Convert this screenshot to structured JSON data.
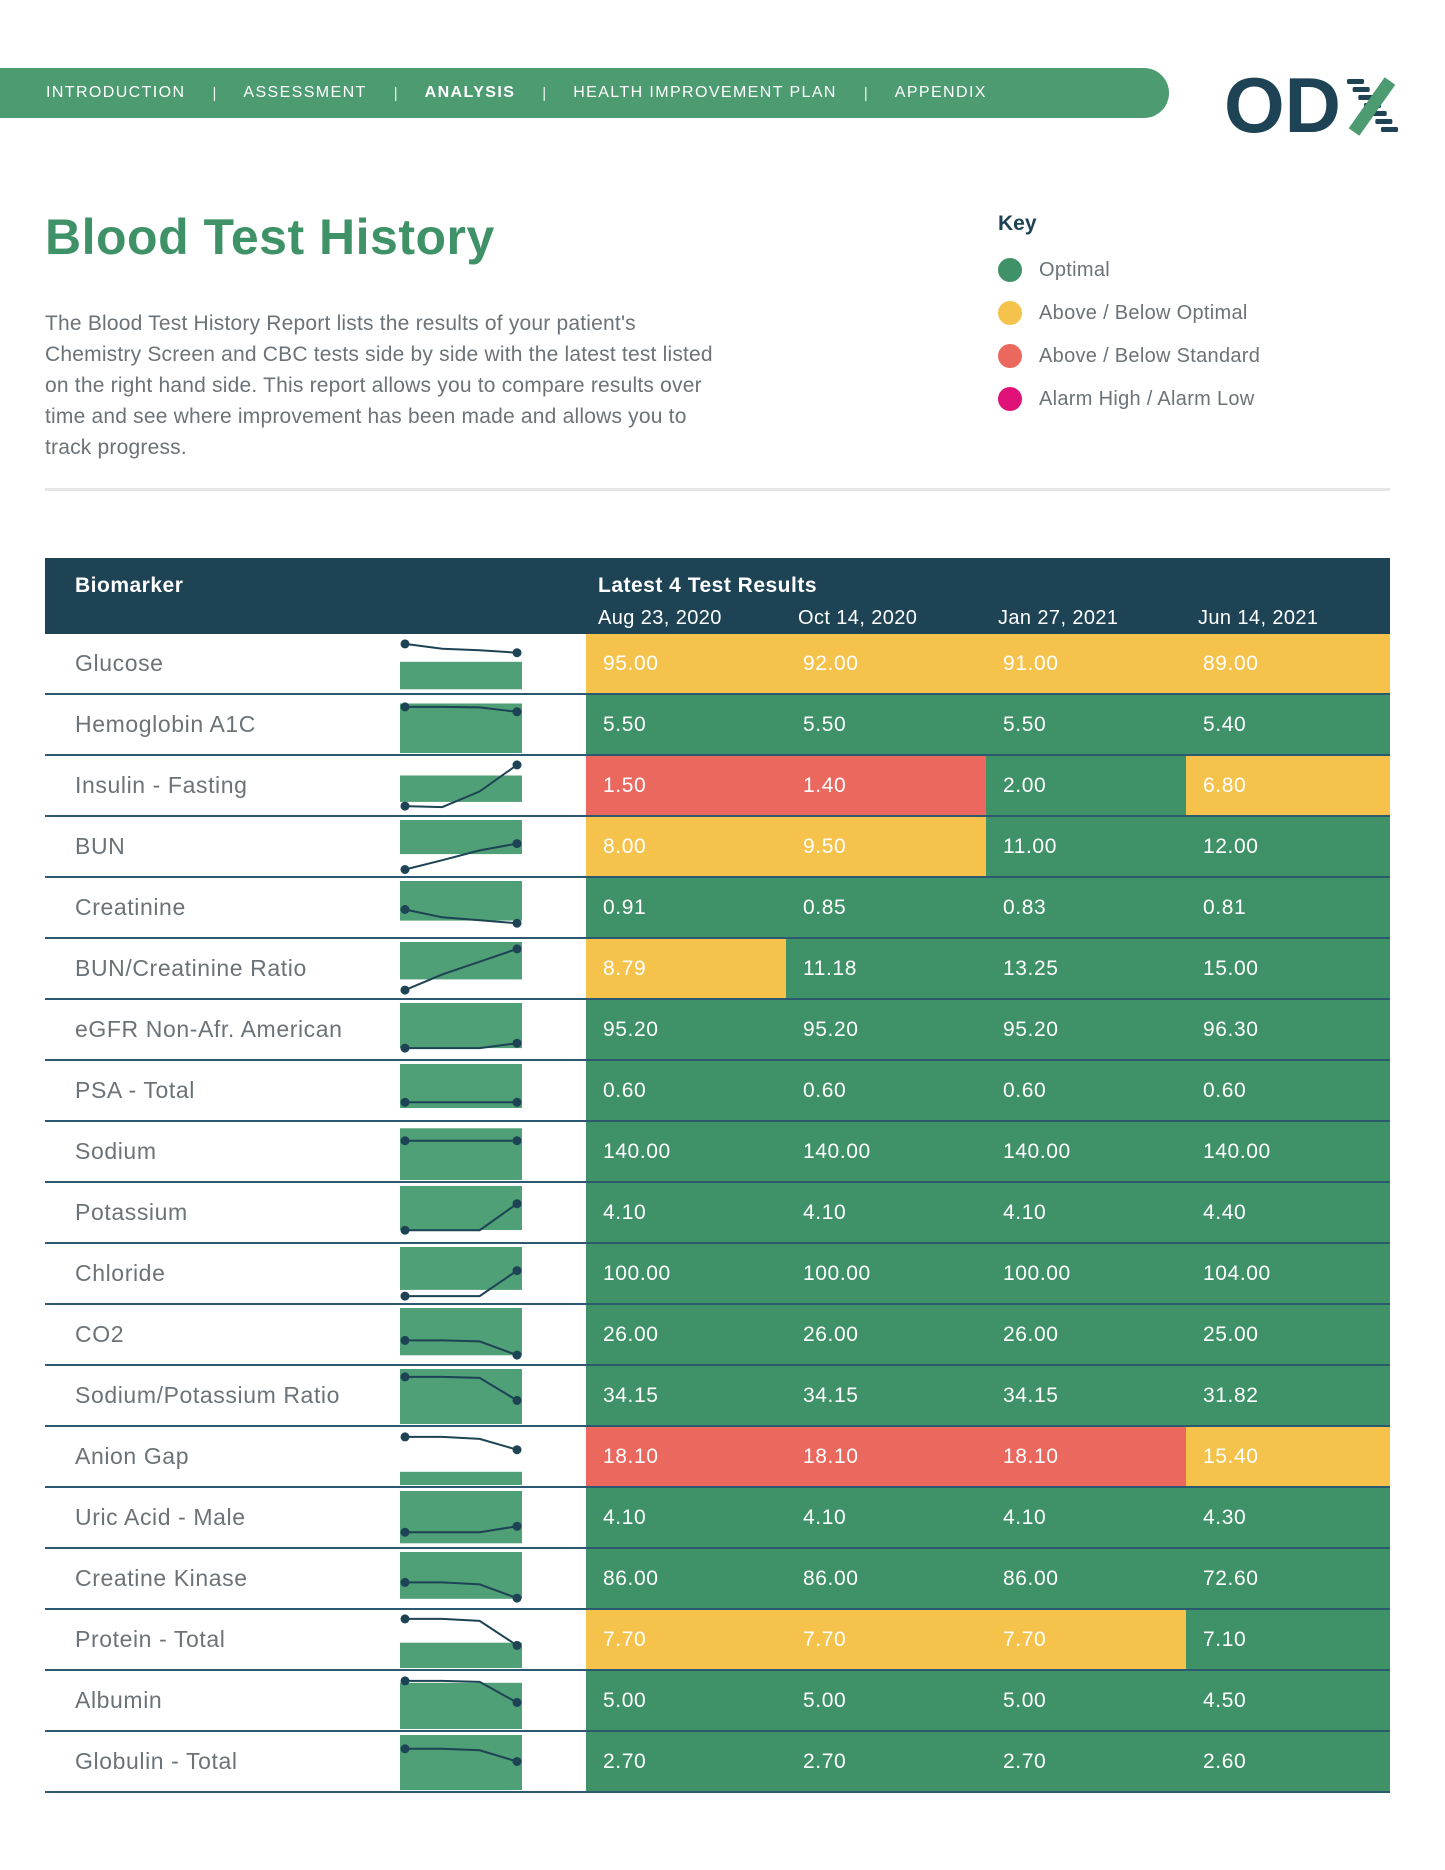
{
  "nav": {
    "separator": "|",
    "items": [
      {
        "label": "INTRODUCTION",
        "active": false
      },
      {
        "label": "ASSESSMENT",
        "active": false
      },
      {
        "label": "ANALYSIS",
        "active": true
      },
      {
        "label": "HEALTH IMPROVEMENT PLAN",
        "active": false
      },
      {
        "label": "APPENDIX",
        "active": false
      }
    ]
  },
  "logo": {
    "od": "OD",
    "x": "X"
  },
  "page": {
    "title": "Blood Test History",
    "description": "The Blood Test History Report lists the results of your patient's Chemistry Screen and CBC tests side by side with the latest test listed on the right hand side. This report allows you to compare results over time and see where improvement has been made and allows you to track progress."
  },
  "key": {
    "title": "Key",
    "items": [
      {
        "label": "Optimal",
        "status": "optimal"
      },
      {
        "label": "Above / Below Optimal",
        "status": "above_below_optimal"
      },
      {
        "label": "Above / Below Standard",
        "status": "above_below_standard"
      },
      {
        "label": "Alarm High / Alarm Low",
        "status": "alarm"
      }
    ]
  },
  "table": {
    "col_biomarker": "Biomarker",
    "col_results": "Latest 4 Test Results",
    "dates": [
      "Aug 23, 2020",
      "Oct 14, 2020",
      "Jan 27, 2021",
      "Jun 14, 2021"
    ],
    "rows": [
      {
        "biomarker": "Glucose",
        "values": [
          "95.00",
          "92.00",
          "91.00",
          "89.00"
        ],
        "statuses": [
          "above_below_optimal",
          "above_below_optimal",
          "above_below_optimal",
          "above_below_optimal"
        ],
        "spark": {
          "band": [
            0.45,
            0.95
          ],
          "points": [
            0.08,
            0.18,
            0.21,
            0.26
          ]
        }
      },
      {
        "biomarker": "Hemoglobin A1C",
        "values": [
          "5.50",
          "5.50",
          "5.50",
          "5.40"
        ],
        "statuses": [
          "optimal",
          "optimal",
          "optimal",
          "optimal"
        ],
        "spark": {
          "band": [
            0.1,
            1.0
          ],
          "points": [
            0.12,
            0.12,
            0.13,
            0.22
          ]
        }
      },
      {
        "biomarker": "Insulin - Fasting",
        "values": [
          "1.50",
          "1.40",
          "2.00",
          "6.80"
        ],
        "statuses": [
          "above_below_standard",
          "above_below_standard",
          "optimal",
          "above_below_optimal"
        ],
        "spark": {
          "band": [
            0.3,
            0.78
          ],
          "points": [
            0.9,
            0.92,
            0.6,
            0.06
          ]
        }
      },
      {
        "biomarker": "BUN",
        "values": [
          "8.00",
          "9.50",
          "11.00",
          "12.00"
        ],
        "statuses": [
          "above_below_optimal",
          "above_below_optimal",
          "optimal",
          "optimal"
        ],
        "spark": {
          "band": [
            0.0,
            0.62
          ],
          "points": [
            0.95,
            0.76,
            0.56,
            0.42
          ]
        }
      },
      {
        "biomarker": "Creatinine",
        "values": [
          "0.91",
          "0.85",
          "0.83",
          "0.81"
        ],
        "statuses": [
          "optimal",
          "optimal",
          "optimal",
          "optimal"
        ],
        "spark": {
          "band": [
            0.0,
            0.72
          ],
          "points": [
            0.52,
            0.68,
            0.74,
            0.8
          ]
        }
      },
      {
        "biomarker": "BUN/Creatinine Ratio",
        "values": [
          "8.79",
          "11.18",
          "13.25",
          "15.00"
        ],
        "statuses": [
          "above_below_optimal",
          "optimal",
          "optimal",
          "optimal"
        ],
        "spark": {
          "band": [
            0.0,
            0.68
          ],
          "points": [
            0.92,
            0.6,
            0.34,
            0.08
          ]
        }
      },
      {
        "biomarker": "eGFR Non-Afr. American",
        "values": [
          "95.20",
          "95.20",
          "95.20",
          "96.30"
        ],
        "statuses": [
          "optimal",
          "optimal",
          "optimal",
          "optimal"
        ],
        "spark": {
          "band": [
            0.0,
            0.82
          ],
          "points": [
            0.86,
            0.86,
            0.86,
            0.76
          ]
        }
      },
      {
        "biomarker": "PSA - Total",
        "values": [
          "0.60",
          "0.60",
          "0.60",
          "0.60"
        ],
        "statuses": [
          "optimal",
          "optimal",
          "optimal",
          "optimal"
        ],
        "spark": {
          "band": [
            0.0,
            0.8
          ],
          "points": [
            0.72,
            0.72,
            0.72,
            0.72
          ]
        }
      },
      {
        "biomarker": "Sodium",
        "values": [
          "140.00",
          "140.00",
          "140.00",
          "140.00"
        ],
        "statuses": [
          "optimal",
          "optimal",
          "optimal",
          "optimal"
        ],
        "spark": {
          "band": [
            0.06,
            1.0
          ],
          "points": [
            0.26,
            0.26,
            0.26,
            0.26
          ]
        }
      },
      {
        "biomarker": "Potassium",
        "values": [
          "4.10",
          "4.10",
          "4.10",
          "4.40"
        ],
        "statuses": [
          "optimal",
          "optimal",
          "optimal",
          "optimal"
        ],
        "spark": {
          "band": [
            0.0,
            0.8
          ],
          "points": [
            0.84,
            0.84,
            0.84,
            0.3
          ]
        }
      },
      {
        "biomarker": "Chloride",
        "values": [
          "100.00",
          "100.00",
          "100.00",
          "104.00"
        ],
        "statuses": [
          "optimal",
          "optimal",
          "optimal",
          "optimal"
        ],
        "spark": {
          "band": [
            0.0,
            0.78
          ],
          "points": [
            0.94,
            0.94,
            0.94,
            0.42
          ]
        }
      },
      {
        "biomarker": "CO2",
        "values": [
          "26.00",
          "26.00",
          "26.00",
          "25.00"
        ],
        "statuses": [
          "optimal",
          "optimal",
          "optimal",
          "optimal"
        ],
        "spark": {
          "band": [
            0.0,
            0.86
          ],
          "points": [
            0.6,
            0.6,
            0.62,
            0.9
          ]
        }
      },
      {
        "biomarker": "Sodium/Potassium Ratio",
        "values": [
          "34.15",
          "34.15",
          "34.15",
          "31.82"
        ],
        "statuses": [
          "optimal",
          "optimal",
          "optimal",
          "optimal"
        ],
        "spark": {
          "band": [
            0.0,
            1.0
          ],
          "points": [
            0.1,
            0.1,
            0.12,
            0.58
          ]
        }
      },
      {
        "biomarker": "Anion Gap",
        "values": [
          "18.10",
          "18.10",
          "18.10",
          "15.40"
        ],
        "statuses": [
          "above_below_standard",
          "above_below_standard",
          "above_below_standard",
          "above_below_optimal"
        ],
        "spark": {
          "band": [
            0.76,
            1.0
          ],
          "points": [
            0.08,
            0.08,
            0.12,
            0.34
          ]
        }
      },
      {
        "biomarker": "Uric Acid - Male",
        "values": [
          "4.10",
          "4.10",
          "4.10",
          "4.30"
        ],
        "statuses": [
          "optimal",
          "optimal",
          "optimal",
          "optimal"
        ],
        "spark": {
          "band": [
            0.0,
            0.95
          ],
          "points": [
            0.78,
            0.78,
            0.78,
            0.66
          ]
        }
      },
      {
        "biomarker": "Creatine Kinase",
        "values": [
          "86.00",
          "86.00",
          "86.00",
          "72.60"
        ],
        "statuses": [
          "optimal",
          "optimal",
          "optimal",
          "optimal"
        ],
        "spark": {
          "band": [
            0.0,
            0.85
          ],
          "points": [
            0.56,
            0.56,
            0.6,
            0.88
          ]
        }
      },
      {
        "biomarker": "Protein - Total",
        "values": [
          "7.70",
          "7.70",
          "7.70",
          "7.10"
        ],
        "statuses": [
          "above_below_optimal",
          "above_below_optimal",
          "above_below_optimal",
          "optimal"
        ],
        "spark": {
          "band": [
            0.54,
            1.0
          ],
          "points": [
            0.06,
            0.06,
            0.1,
            0.6
          ]
        }
      },
      {
        "biomarker": "Albumin",
        "values": [
          "5.00",
          "5.00",
          "5.00",
          "4.50"
        ],
        "statuses": [
          "optimal",
          "optimal",
          "optimal",
          "optimal"
        ],
        "spark": {
          "band": [
            0.16,
            1.0
          ],
          "points": [
            0.08,
            0.08,
            0.1,
            0.52
          ]
        }
      },
      {
        "biomarker": "Globulin - Total",
        "values": [
          "2.70",
          "2.70",
          "2.70",
          "2.60"
        ],
        "statuses": [
          "optimal",
          "optimal",
          "optimal",
          "optimal"
        ],
        "spark": {
          "band": [
            0.0,
            1.0
          ],
          "points": [
            0.22,
            0.22,
            0.25,
            0.48
          ]
        }
      }
    ]
  },
  "colors": {
    "optimal": "#3F9268",
    "above_below_optimal": "#F5C24C",
    "above_below_standard": "#EA685E",
    "alarm": "#E01177",
    "nav_green": "#4C9B71",
    "band_green": "#4FA076",
    "navy": "#1D4355",
    "text_gray": "#6B7378",
    "divider": "#E5E6E8",
    "row_border": "#2C5870",
    "title_green": "#3F9268"
  }
}
